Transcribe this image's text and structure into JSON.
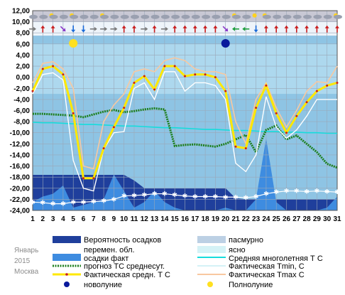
{
  "caption": {
    "month": "Январь",
    "year": "2015",
    "city": "Москва"
  },
  "legend": {
    "precip_probability": "Вероятность осадков",
    "overcast": "пасмурно",
    "partly_cloudy": "перемен. обл.",
    "clear": "ясно",
    "precip_actual": "осадки факт",
    "normal_mean": "Средняя многолетняя Т С",
    "forecast_mean": "прогноз ТС среднесут.",
    "actual_tmin": "Фактическая Tmin, C",
    "actual_mean": "Фактическая средн. Т С",
    "actual_tmax": "Фактическая Tmax C",
    "new_moon": "новолуние",
    "full_moon": "Полнолуние"
  },
  "colors": {
    "precip_probability": "#1f3f9c",
    "overcast": "#bcd0e4",
    "partly_cloudy": "#4a87dc",
    "clear": "#d4f2f6",
    "precip_actual": "#3e8ce0",
    "normal_mean": "#16dcdc",
    "forecast_mean": "#1e7f1e",
    "actual_tmin": "#ffffff",
    "actual_mean": "#ffe800",
    "actual_tmax": "#f8c8a0",
    "new_moon": "#0a1a9c",
    "full_moon": "#ffe020",
    "plot_bg": "#8ec4e4",
    "band_light": "#c6eaf6",
    "wind_header": "#c8c8d4"
  },
  "chart_data": {
    "type": "line",
    "x": [
      1,
      2,
      3,
      4,
      5,
      6,
      7,
      8,
      9,
      10,
      11,
      12,
      13,
      14,
      15,
      16,
      17,
      18,
      19,
      20,
      21,
      22,
      23,
      24,
      25,
      26,
      27,
      28,
      29,
      30,
      31
    ],
    "x_ticks": [
      "1",
      "2",
      "3",
      "4",
      "5",
      "6",
      "7",
      "8",
      "9",
      "10",
      "11",
      "12",
      "13",
      "14",
      "15",
      "16",
      "17",
      "18",
      "19",
      "20",
      "21",
      "22",
      "23",
      "24",
      "25",
      "26",
      "27",
      "28",
      "29",
      "30",
      "31"
    ],
    "y_ticks": [
      "12,00",
      "10,00",
      "8,00",
      "6,00",
      "4,00",
      "2,00",
      "0,00",
      "-2,00",
      "-4,00",
      "-6,00",
      "-8,00",
      "-10,00",
      "-12,00",
      "-14,00",
      "-16,00",
      "-18,00",
      "-20,00",
      "-22,00",
      "-24,00"
    ],
    "ylim": [
      -24,
      12
    ],
    "grid": true,
    "series": [
      {
        "name": "Средняя многолетняя Т С",
        "key": "normal_mean",
        "values": [
          -8.1,
          -8.2,
          -8.2,
          -8.3,
          -8.4,
          -8.5,
          -8.5,
          -8.6,
          -8.7,
          -8.8,
          -8.8,
          -8.9,
          -9.0,
          -9.1,
          -9.1,
          -9.2,
          -9.3,
          -9.4,
          -9.4,
          -9.5,
          -9.6,
          -9.6,
          -9.7,
          -9.8,
          -9.8,
          -9.9,
          -9.9,
          -10.0,
          -10.0,
          -10.1,
          -10.1
        ]
      },
      {
        "name": "прогноз ТС среднесут.",
        "key": "forecast_mean",
        "values": [
          -6.6,
          -6.6,
          -6.7,
          -6.8,
          -6.9,
          -7.2,
          -6.7,
          -6.2,
          -5.9,
          -6.3,
          -6.1,
          -5.8,
          -5.6,
          -5.8,
          -12.4,
          -12.2,
          -12.1,
          -12.3,
          -12.5,
          -12.0,
          -11.2,
          -10.4,
          -13.5,
          -9.5,
          -8.7,
          -11.2,
          -10.5,
          -12.0,
          -13.5,
          -15.6,
          -16.3
        ]
      },
      {
        "name": "Фактическая Tmin, C",
        "key": "actual_tmin",
        "values": [
          -3.0,
          0.5,
          0.8,
          -0.5,
          -15.0,
          -20.0,
          -20.5,
          -13.0,
          -10.0,
          -9.8,
          -2.0,
          -1.0,
          -4.0,
          1.0,
          1.0,
          -2.5,
          -1.0,
          -1.0,
          -1.5,
          -4.0,
          -15.5,
          -17.0,
          -14.0,
          -3.5,
          -9.0,
          -11.0,
          -9.5,
          -7.0,
          -4.0,
          -4.0,
          -4.0
        ]
      },
      {
        "name": "Фактическая средн. Т С",
        "key": "actual_mean",
        "values": [
          -2.5,
          1.5,
          2.0,
          0.5,
          -6.5,
          -18.2,
          -18.2,
          -12.8,
          -9.0,
          -5.5,
          -1.0,
          0.2,
          -2.2,
          2.0,
          2.0,
          0.2,
          0.5,
          0.5,
          0.0,
          -2.5,
          -12.5,
          -12.8,
          -5.5,
          -1.5,
          -6.5,
          -10.0,
          -7.0,
          -4.5,
          -2.5,
          -1.5,
          -1.0
        ]
      },
      {
        "name": "Фактическая Tmax C",
        "key": "actual_tmax",
        "values": [
          -1.0,
          2.5,
          2.8,
          1.5,
          -2.0,
          -16.0,
          -16.5,
          -8.0,
          -5.0,
          -3.0,
          1.0,
          1.5,
          1.0,
          3.0,
          3.5,
          3.0,
          1.5,
          1.0,
          1.0,
          0.5,
          -8.0,
          -12.0,
          -4.0,
          -1.0,
          -5.5,
          -9.0,
          -6.0,
          -2.5,
          -0.8,
          -1.0,
          2.0
        ]
      }
    ],
    "precip_probability": [
      -17.6,
      -17.6,
      -17.6,
      -17.6,
      -17.6,
      -17.6,
      -17.6,
      -17.6,
      -17.6,
      -17.6,
      -18.6,
      -20.0,
      -20.0,
      -20.0,
      -20.0,
      -20.0,
      -20.0,
      -20.0,
      -20.0,
      -20.0,
      -21.8,
      -22.0,
      -22.0,
      -22.0,
      -22.0,
      -22.0,
      -22.0,
      -22.0,
      -22.0,
      -22.0,
      -22.0
    ],
    "precip_actual": [
      -22.5,
      -21.5,
      -21.0,
      -19.5,
      -23.5,
      -23.0,
      -22.5,
      -22.0,
      -17.5,
      -20.5,
      -23.5,
      -22.5,
      -20.5,
      -22.5,
      -23.5,
      -24,
      -24,
      -24,
      -24,
      -23.5,
      -24,
      -24,
      -22.0,
      -11.0,
      -22.5,
      -24,
      -24,
      -24,
      -24,
      -23.5,
      -21.5
    ],
    "cloud_band_top": [
      -7.0,
      -7.0,
      -7.0,
      -7.0,
      -7.0,
      -7.0,
      -7.0,
      -7.0,
      -7.0,
      -7.0,
      -7.0,
      -7.0,
      -7.0,
      -7.0,
      -7.0,
      -7.0,
      -7.0,
      -7.0,
      -7.0,
      -7.0,
      -7.0,
      -7.0,
      -7.0,
      -7.0,
      -7.0,
      -7.0,
      -7.0,
      -7.0,
      -7.0,
      -7.0,
      -7.0
    ],
    "bottom_line": [
      -22.5,
      -22.6,
      -22.8,
      -22.8,
      -22.5,
      -22.5,
      -22.4,
      -22.3,
      -22.0,
      -21.4,
      -21.3,
      -21.2,
      -21.0,
      -21.0,
      -21.2,
      -21.4,
      -21.5,
      -21.5,
      -21.5,
      -21.6,
      -21.6,
      -21.7,
      -21.5,
      -21.0,
      -20.7,
      -20.5,
      -20.5,
      -20.6,
      -20.5,
      -20.6,
      -20.7
    ],
    "moon_phases": [
      {
        "day": 5,
        "phase": "full_moon"
      },
      {
        "day": 20,
        "phase": "new_moon"
      }
    ],
    "wind": [
      {
        "icon": "arrow-right-icon",
        "color": "#7a7a7a"
      },
      {
        "icon": "arrow-up-icon",
        "color": "#c81e1e"
      },
      {
        "icon": "arrow-up-icon",
        "color": "#c81e1e"
      },
      {
        "icon": "arrow-down-right-icon",
        "color": "#8a3ac8"
      },
      {
        "icon": "arrow-down-icon",
        "color": "#1a6ad8"
      },
      {
        "icon": "arrow-down-icon",
        "color": "#1a6ad8"
      },
      {
        "icon": "arrow-right-icon",
        "color": "#7a7a7a"
      },
      {
        "icon": "arrow-right-icon",
        "color": "#7a7a7a"
      },
      {
        "icon": "arrow-right-icon",
        "color": "#7a7a7a"
      },
      {
        "icon": "arrow-up-icon",
        "color": "#c81e1e"
      },
      {
        "icon": "arrow-up-icon",
        "color": "#c81e1e"
      },
      {
        "icon": "arrow-right-icon",
        "color": "#7a7a7a"
      },
      {
        "icon": "arrow-up-icon",
        "color": "#c81e1e"
      },
      {
        "icon": "arrow-right-icon",
        "color": "#7a7a7a"
      },
      {
        "icon": "arrow-up-icon",
        "color": "#c81e1e"
      },
      {
        "icon": "arrow-up-icon",
        "color": "#c81e1e"
      },
      {
        "icon": "arrow-up-icon",
        "color": "#c81e1e"
      },
      {
        "icon": "arrow-up-icon",
        "color": "#c81e1e"
      },
      {
        "icon": "arrow-up-icon",
        "color": "#c81e1e"
      },
      {
        "icon": "arrow-down-right-icon",
        "color": "#8a3ac8"
      },
      {
        "icon": "arrow-left-icon",
        "color": "#1e9e3e"
      },
      {
        "icon": "arrow-left-icon",
        "color": "#1e9e3e"
      },
      {
        "icon": "arrow-down-icon",
        "color": "#1a6ad8"
      },
      {
        "icon": "arrow-up-icon",
        "color": "#c81e1e"
      },
      {
        "icon": "arrow-up-icon",
        "color": "#c81e1e"
      },
      {
        "icon": "arrow-up-icon",
        "color": "#c81e1e"
      },
      {
        "icon": "arrow-up-icon",
        "color": "#c81e1e"
      },
      {
        "icon": "arrow-up-icon",
        "color": "#c81e1e"
      },
      {
        "icon": "arrow-up-icon",
        "color": "#c81e1e"
      },
      {
        "icon": "arrow-up-icon",
        "color": "#c81e1e"
      },
      {
        "icon": "arrow-up-icon",
        "color": "#c81e1e"
      }
    ],
    "sky": [
      "cloud-icon",
      "cloud-icon",
      "sun-cloud-icon",
      "cloud-icon",
      "sun-cloud-icon",
      "cloud-icon",
      "cloud-icon",
      "sun-cloud-icon",
      "cloud-icon",
      "cloud-icon",
      "cloud-icon",
      "cloud-icon",
      "cloud-icon",
      "cloud-icon",
      "cloud-icon",
      "cloud-icon",
      "cloud-icon",
      "cloud-icon",
      "cloud-icon",
      "cloud-icon",
      "sun-cloud-icon",
      "cloud-icon",
      "sun-icon",
      "sun-cloud-icon",
      "cloud-icon",
      "cloud-icon",
      "cloud-icon",
      "cloud-icon",
      "cloud-icon",
      "cloud-icon",
      "sun-cloud-icon"
    ]
  }
}
